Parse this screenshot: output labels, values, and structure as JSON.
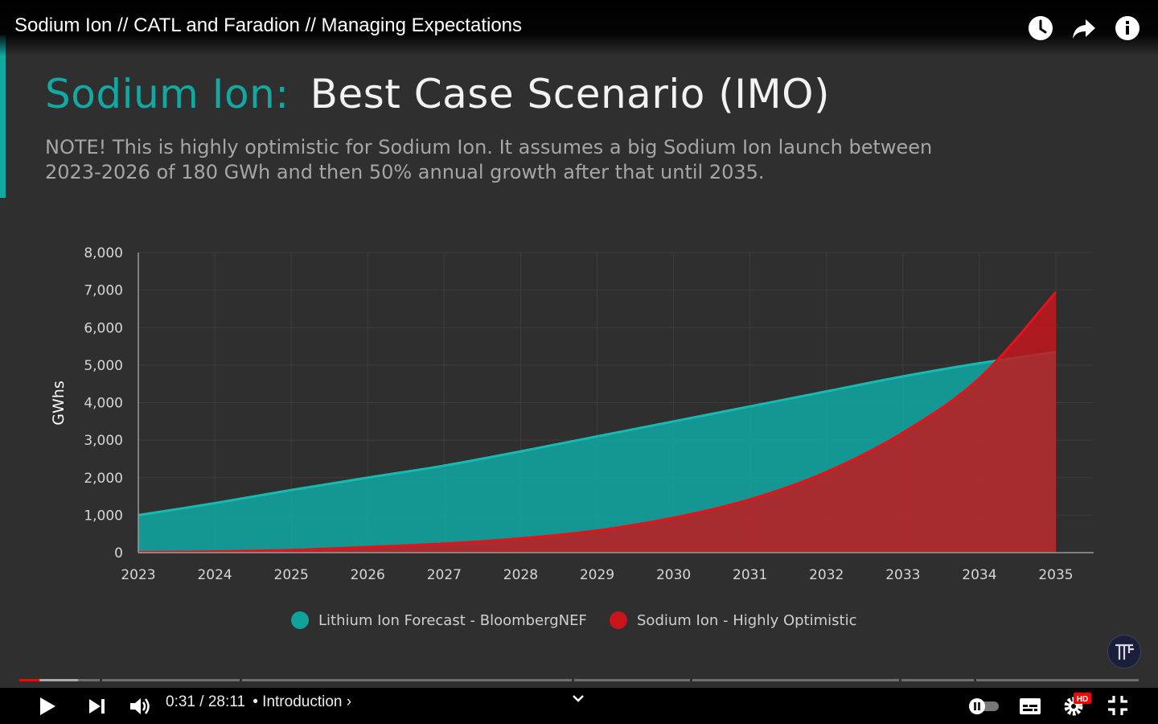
{
  "video": {
    "title": "Sodium Ion // CATL and Faradion // Managing Expectations",
    "time_current": "0:31",
    "time_separator": "/",
    "time_total": "28:11",
    "chapter": "• Introduction ›",
    "progress_fraction": 0.018
  },
  "slide": {
    "title_part1": "Sodium Ion:",
    "title_part2": "Best Case Scenario (IMO)",
    "note_line1": "NOTE!  This is highly optimistic for Sodium Ion.  It assumes a big Sodium Ion launch between",
    "note_line2": "2023-2026 of 180 GWh and then 50% annual growth after that until 2035."
  },
  "chart_data": {
    "type": "area",
    "x": [
      "2023",
      "2024",
      "2025",
      "2026",
      "2027",
      "2028",
      "2029",
      "2030",
      "2031",
      "2032",
      "2033",
      "2034",
      "2035"
    ],
    "ylabel": "GWhs",
    "ylim": [
      0,
      8000
    ],
    "yticks": [
      "0",
      "1,000",
      "2,000",
      "3,000",
      "4,000",
      "5,000",
      "6,000",
      "7,000",
      "8,000"
    ],
    "grid": true,
    "legend_position": "bottom",
    "series": [
      {
        "name": "Lithium Ion Forecast - BloombergNEF",
        "color": "#12a19b",
        "values": [
          1000,
          1320,
          1670,
          2000,
          2320,
          2700,
          3100,
          3500,
          3900,
          4300,
          4700,
          5050,
          5350
        ]
      },
      {
        "name": "Sodium Ion - Highly Optimistic",
        "color": "#c8151b",
        "values": [
          10,
          30,
          70,
          150,
          240,
          380,
          590,
          930,
          1420,
          2150,
          3200,
          4650,
          6950
        ]
      }
    ]
  },
  "icons": {
    "watch_later": "clock-icon",
    "share": "share-icon",
    "info": "info-icon",
    "play": "play-icon",
    "next": "next-icon",
    "volume": "volume-icon",
    "autoplay": "autoplay-toggle-icon",
    "captions": "captions-icon",
    "settings": "settings-gear-icon",
    "hd_badge": "HD",
    "fullscreen_exit": "exit-fullscreen-icon"
  },
  "colors": {
    "accent": "#14a8a3",
    "progress_played": "#ff0000"
  }
}
